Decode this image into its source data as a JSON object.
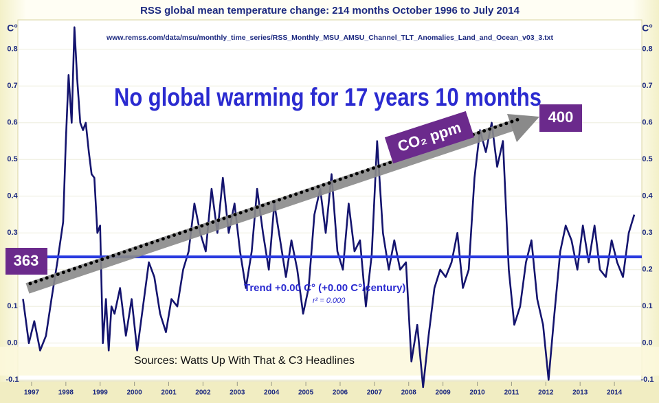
{
  "chart_data": {
    "type": "line",
    "title": "RSS global mean temperature change: 214 months October 1996 to July 2014",
    "subtitle": "www.remss.com/data/msu/monthly_time_series/RSS_Monthly_MSU_AMSU_Channel_TLT_Anomalies_Land_and_Ocean_v03_3.txt",
    "headline": "No global warming for 17 years 10 months",
    "y_label": "C°",
    "source": "Sources: Watts Up With That & C3 Headlines",
    "x": [
      1996.75,
      1996.92,
      1997.08,
      1997.25,
      1997.42,
      1997.58,
      1997.75,
      1997.92,
      1998.0,
      1998.08,
      1998.17,
      1998.25,
      1998.33,
      1998.42,
      1998.5,
      1998.58,
      1998.67,
      1998.75,
      1998.83,
      1998.92,
      1999.0,
      1999.08,
      1999.17,
      1999.25,
      1999.33,
      1999.42,
      1999.58,
      1999.75,
      1999.92,
      2000.08,
      2000.25,
      2000.42,
      2000.58,
      2000.75,
      2000.92,
      2001.08,
      2001.25,
      2001.42,
      2001.58,
      2001.75,
      2001.92,
      2002.08,
      2002.25,
      2002.42,
      2002.58,
      2002.75,
      2002.92,
      2003.08,
      2003.25,
      2003.42,
      2003.58,
      2003.75,
      2003.92,
      2004.08,
      2004.25,
      2004.42,
      2004.58,
      2004.75,
      2004.92,
      2005.08,
      2005.25,
      2005.42,
      2005.58,
      2005.75,
      2005.92,
      2006.08,
      2006.25,
      2006.42,
      2006.58,
      2006.75,
      2006.92,
      2007.08,
      2007.25,
      2007.42,
      2007.58,
      2007.75,
      2007.92,
      2008.08,
      2008.25,
      2008.42,
      2008.58,
      2008.75,
      2008.92,
      2009.08,
      2009.25,
      2009.42,
      2009.58,
      2009.75,
      2009.92,
      2010.08,
      2010.25,
      2010.42,
      2010.58,
      2010.75,
      2010.92,
      2011.08,
      2011.25,
      2011.42,
      2011.58,
      2011.75,
      2011.92,
      2012.08,
      2012.25,
      2012.42,
      2012.58,
      2012.75,
      2012.92,
      2013.08,
      2013.25,
      2013.42,
      2013.58,
      2013.75,
      2013.92,
      2014.08,
      2014.25,
      2014.42,
      2014.58
    ],
    "series": [
      {
        "color": "#14146e",
        "values": [
          0.12,
          0.0,
          0.06,
          -0.02,
          0.02,
          0.12,
          0.22,
          0.33,
          0.55,
          0.73,
          0.6,
          0.86,
          0.72,
          0.6,
          0.58,
          0.6,
          0.52,
          0.46,
          0.45,
          0.3,
          0.32,
          0.0,
          0.12,
          -0.02,
          0.1,
          0.08,
          0.15,
          0.02,
          0.12,
          -0.02,
          0.1,
          0.22,
          0.18,
          0.08,
          0.03,
          0.12,
          0.1,
          0.2,
          0.25,
          0.38,
          0.3,
          0.25,
          0.42,
          0.3,
          0.45,
          0.3,
          0.38,
          0.25,
          0.15,
          0.25,
          0.42,
          0.3,
          0.2,
          0.38,
          0.28,
          0.18,
          0.28,
          0.2,
          0.08,
          0.15,
          0.35,
          0.42,
          0.3,
          0.46,
          0.25,
          0.2,
          0.38,
          0.25,
          0.28,
          0.1,
          0.24,
          0.55,
          0.3,
          0.2,
          0.28,
          0.2,
          0.22,
          -0.05,
          0.05,
          -0.12,
          0.02,
          0.15,
          0.2,
          0.18,
          0.22,
          0.3,
          0.15,
          0.2,
          0.45,
          0.58,
          0.52,
          0.6,
          0.48,
          0.55,
          0.2,
          0.05,
          0.1,
          0.22,
          0.28,
          0.12,
          0.05,
          -0.1,
          0.08,
          0.25,
          0.32,
          0.28,
          0.2,
          0.32,
          0.22,
          0.32,
          0.2,
          0.18,
          0.28,
          0.22,
          0.18,
          0.3,
          0.35
        ]
      }
    ],
    "trend": {
      "value": 0.235,
      "color": "#2a3be0",
      "label": "Trend +0.00 C° (+0.00 C°/century)",
      "r2_label": "r² = 0.000"
    },
    "co2": {
      "label": "CO₂ ppm",
      "start": 363,
      "end": 400,
      "color": "#6b2a8c"
    },
    "xlim": [
      1996.6,
      2014.8
    ],
    "xticks": [
      1997,
      1998,
      1999,
      2000,
      2001,
      2002,
      2003,
      2004,
      2005,
      2006,
      2007,
      2008,
      2009,
      2010,
      2011,
      2012,
      2013,
      2014
    ],
    "ylim": [
      -0.12,
      0.88
    ],
    "yticks": [
      -0.1,
      {
        "value": 0,
        "label": "0.0"
      },
      0.1,
      0.2,
      0.3,
      0.4,
      0.5,
      0.6,
      0.7,
      0.8
    ]
  }
}
